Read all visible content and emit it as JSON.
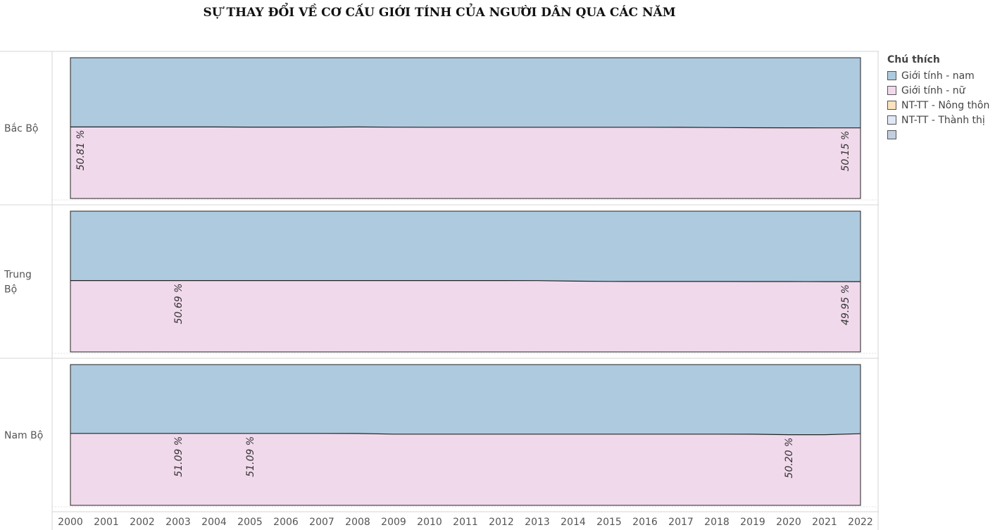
{
  "title": "SỰ THAY ĐỔI VỀ CƠ CẤU GIỚI TÍNH CỦA NGƯỜI DÂN QUA CÁC NĂM",
  "legend": {
    "title": "Chú thích",
    "items": [
      {
        "label": "Giới tính - nam",
        "color": "#aecadf"
      },
      {
        "label": "Giới tính - nữ",
        "color": "#f1d9ec"
      },
      {
        "label": "NT-TT - Nông thôn",
        "color": "#fae3bd"
      },
      {
        "label": "NT-TT - Thành thị",
        "color": "#dfe8f4"
      },
      {
        "label": "",
        "color": "#c2cfe0"
      }
    ]
  },
  "chart_data": {
    "type": "area",
    "stacked": "percent",
    "x": [
      2000,
      2001,
      2002,
      2003,
      2004,
      2005,
      2006,
      2007,
      2008,
      2009,
      2010,
      2011,
      2012,
      2013,
      2014,
      2015,
      2016,
      2017,
      2018,
      2019,
      2020,
      2021,
      2022
    ],
    "ylim": [
      0,
      100
    ],
    "grid": false,
    "legend_position": "right",
    "rows": [
      {
        "label": "Bắc Bộ",
        "female_pct": [
          50.81,
          50.8,
          50.8,
          50.79,
          50.78,
          50.7,
          50.7,
          50.7,
          50.8,
          50.65,
          50.6,
          50.6,
          50.6,
          50.6,
          50.6,
          50.6,
          50.6,
          50.57,
          50.38,
          50.25,
          50.2,
          50.17,
          50.15
        ],
        "labels": [
          {
            "x": 2000,
            "text": "50.81 %"
          },
          {
            "x": 2022,
            "text": "50.15 %"
          }
        ]
      },
      {
        "label": "Trung Bộ",
        "female_pct": [
          50.69,
          50.69,
          50.69,
          50.69,
          50.69,
          50.69,
          50.69,
          50.69,
          50.69,
          50.69,
          50.69,
          50.69,
          50.69,
          50.65,
          50.3,
          50.1,
          50.05,
          50.05,
          50.03,
          50.0,
          49.98,
          49.96,
          49.95
        ],
        "labels": [
          {
            "x": 2003,
            "text": "50.69 %"
          },
          {
            "x": 2022,
            "text": "49.95 %"
          }
        ]
      },
      {
        "label": "Nam Bộ",
        "female_pct": [
          51.09,
          51.09,
          51.09,
          51.09,
          51.09,
          51.09,
          51.09,
          51.09,
          51.05,
          50.6,
          50.6,
          50.6,
          50.6,
          50.6,
          50.6,
          50.6,
          50.6,
          50.6,
          50.6,
          50.55,
          50.2,
          50.2,
          50.9
        ],
        "labels": [
          {
            "x": 2003,
            "text": "51.09 %"
          },
          {
            "x": 2005,
            "text": "51.09 %"
          },
          {
            "x": 2020,
            "text": "50.20 %"
          }
        ]
      }
    ],
    "series": [
      {
        "name": "Giới tính - nam",
        "color": "#aecadf"
      },
      {
        "name": "Giới tính - nữ",
        "color": "#f1d9ec"
      }
    ]
  }
}
